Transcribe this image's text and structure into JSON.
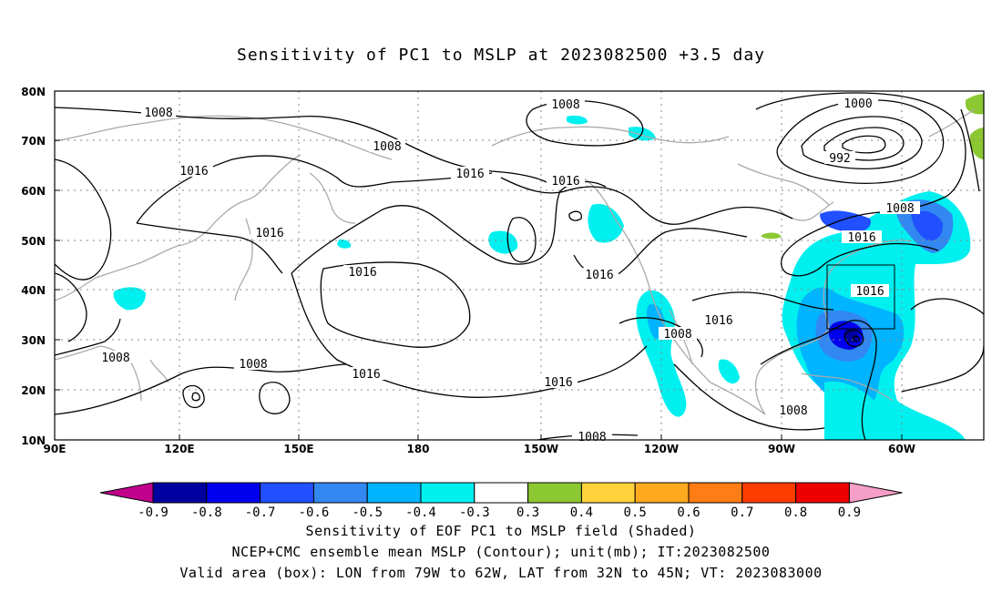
{
  "title": "Sensitivity of PC1 to MSLP at 2023082500 +3.5 day",
  "captions": {
    "line1": "Sensitivity of EOF PC1 to MSLP field (Shaded)",
    "line2": "NCEP+CMC ensemble mean MSLP (Contour); unit(mb); IT:2023082500",
    "line3": "Valid area (box): LON from 79W to 62W, LAT from 32N to 45N; VT: 2023083000"
  },
  "axes": {
    "lat_labels": [
      "80N",
      "70N",
      "60N",
      "50N",
      "40N",
      "30N",
      "20N",
      "10N"
    ],
    "lon_labels": [
      "90E",
      "120E",
      "150E",
      "180",
      "150W",
      "120W",
      "90W",
      "60W"
    ]
  },
  "colorbar": {
    "labels": [
      "-0.9",
      "-0.8",
      "-0.7",
      "-0.6",
      "-0.5",
      "-0.4",
      "-0.3",
      "0.3",
      "0.4",
      "0.5",
      "0.6",
      "0.7",
      "0.8",
      "0.9"
    ],
    "colors": [
      "#c0008c",
      "#0000a0",
      "#0000ee",
      "#2050ff",
      "#3288f0",
      "#00b4ff",
      "#00f0f0",
      "#ffffff",
      "#8cc832",
      "#ffd23c",
      "#ffaa1e",
      "#ff7d14",
      "#ff3c00",
      "#ee0000",
      "#f59ec8"
    ]
  },
  "contour_labels": [
    "1008",
    "1008",
    "1016",
    "1016",
    "1016",
    "1008",
    "1016",
    "1008",
    "1008",
    "1016",
    "1016",
    "1016",
    "1016",
    "1016",
    "1016",
    "1008",
    "1008",
    "1000",
    "992",
    "1008",
    "1016",
    "1016",
    "1008"
  ],
  "valid_box": {
    "lon_from": "79W",
    "lon_to": "62W",
    "lat_from": "32N",
    "lat_to": "45N"
  }
}
